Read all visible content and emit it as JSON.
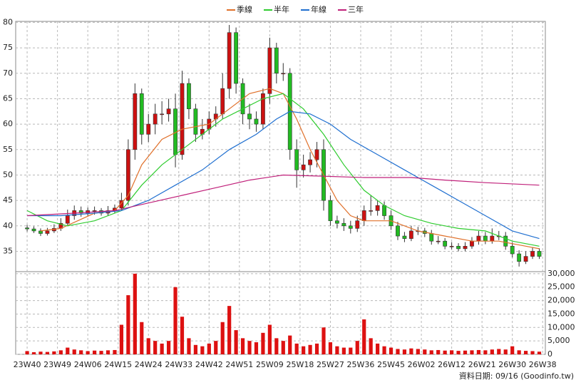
{
  "chart_data": {
    "type": "candlestick",
    "x": [
      0,
      2,
      4,
      6,
      8,
      10,
      12,
      14,
      16,
      18,
      20,
      22,
      24,
      26,
      28,
      30,
      32,
      34,
      36,
      38,
      40,
      42,
      44,
      46,
      48,
      50,
      52,
      54,
      56,
      58,
      60,
      62,
      64,
      66,
      68,
      70,
      72,
      74,
      76,
      78,
      80,
      82,
      84,
      86,
      88,
      90,
      92,
      94,
      96,
      98,
      100,
      102,
      104,
      106,
      108,
      110,
      112,
      114,
      116,
      118,
      120,
      122,
      124,
      126,
      128,
      130,
      132,
      134,
      136,
      138,
      140,
      142,
      144,
      146,
      148,
      150,
      152
    ],
    "open": [
      39.6,
      39.4,
      39,
      38.5,
      39,
      39.5,
      40.5,
      42,
      43,
      42.5,
      43,
      43,
      42.5,
      43,
      43.5,
      45,
      55,
      66,
      58,
      60,
      62,
      62,
      63,
      54,
      68,
      63,
      58,
      59,
      61,
      62,
      67,
      78,
      68,
      62,
      61,
      60,
      66,
      75,
      70,
      70,
      55,
      51,
      52,
      53,
      55,
      45,
      41,
      40.5,
      40,
      39.5,
      41,
      43,
      43,
      44,
      42,
      40,
      38,
      37.5,
      39,
      39,
      38.5,
      37,
      37,
      36,
      36,
      35.5,
      36,
      37,
      38,
      37,
      38,
      38,
      36,
      34.5,
      33,
      34,
      35
    ],
    "high": [
      40.2,
      39.9,
      39.5,
      39.6,
      40.3,
      41.5,
      43.2,
      44,
      43.8,
      43.6,
      43.8,
      43.5,
      43.9,
      44.2,
      46.5,
      57,
      68,
      67,
      62,
      64,
      64.5,
      65,
      66,
      70.5,
      69,
      64,
      61,
      62.5,
      63.5,
      70,
      79.5,
      79,
      69,
      64,
      62.5,
      67,
      77,
      76,
      72,
      71,
      57,
      54,
      54.5,
      56.5,
      57,
      46,
      42,
      41.5,
      41,
      42,
      44,
      46,
      45,
      44.8,
      43,
      40.8,
      38.8,
      40,
      39.8,
      39.6,
      39.2,
      38,
      37.6,
      36.8,
      36.6,
      36.8,
      37.8,
      39,
      38.8,
      39.5,
      39,
      38.8,
      36.8,
      35.2,
      35,
      35.8,
      35.6
    ],
    "low": [
      38.9,
      38.6,
      38,
      38.1,
      38.6,
      39,
      40,
      41.2,
      41.8,
      42,
      42.2,
      42,
      42,
      42.5,
      43,
      44,
      53,
      56,
      56.5,
      58,
      60,
      60.5,
      51.5,
      53,
      61,
      56.5,
      57,
      58,
      59.5,
      61,
      65,
      66,
      60,
      59,
      58.5,
      59,
      64,
      68,
      68.5,
      53,
      47.5,
      49.5,
      50.5,
      51.5,
      43,
      40,
      39.5,
      39,
      38.5,
      38.8,
      40,
      42,
      42,
      41.2,
      39.2,
      37.2,
      36.8,
      37,
      38.2,
      37.8,
      36.3,
      36.4,
      35.4,
      35.4,
      35,
      35,
      35.5,
      36.3,
      36.4,
      36.5,
      37.2,
      35.3,
      33.8,
      32,
      32.5,
      33.5,
      33.5
    ],
    "close": [
      39.4,
      39,
      38.5,
      39,
      39.5,
      40.5,
      42,
      43,
      42.5,
      43,
      43,
      42.5,
      43,
      43.5,
      45,
      55,
      66,
      58,
      60,
      62,
      62,
      63,
      54,
      68,
      63,
      58,
      59,
      61,
      62,
      67,
      78,
      68,
      62,
      61,
      60,
      66,
      75,
      70,
      70,
      55,
      51,
      52,
      53,
      55,
      45,
      41,
      40.5,
      40,
      39.5,
      41,
      43,
      43,
      44,
      42,
      40,
      38,
      37.5,
      39,
      39,
      38.5,
      37,
      37,
      36,
      36,
      35.5,
      36,
      37,
      38,
      37,
      38,
      38,
      36,
      34.5,
      33,
      34,
      35,
      34
    ],
    "volume": [
      1200,
      800,
      1000,
      900,
      1100,
      1500,
      2500,
      1800,
      1500,
      1200,
      1400,
      1300,
      1500,
      1600,
      11000,
      22000,
      30000,
      12000,
      6000,
      5000,
      4000,
      5000,
      25000,
      14000,
      6000,
      3500,
      3000,
      4000,
      5000,
      12000,
      18000,
      9000,
      6000,
      5000,
      4500,
      8000,
      11000,
      6000,
      5000,
      7000,
      4000,
      3000,
      3500,
      4000,
      10000,
      4500,
      3000,
      2500,
      2500,
      5000,
      13000,
      6000,
      4000,
      3000,
      2500,
      2000,
      1800,
      2200,
      2000,
      1800,
      1500,
      1600,
      1400,
      1500,
      1300,
      1400,
      1500,
      1600,
      1500,
      1800,
      2000,
      1800,
      3000,
      1500,
      1300,
      1200,
      1000
    ],
    "up_color": "#cc1111",
    "down_color": "#22bb22",
    "volume_color": "#dd1111",
    "xlim": [
      -3.4,
      153.8
    ],
    "xticks": [
      {
        "value": 0,
        "label": "23W40"
      },
      {
        "value": 9,
        "label": "23W49"
      },
      {
        "value": 18,
        "label": "24W06"
      },
      {
        "value": 27,
        "label": "24W15"
      },
      {
        "value": 36,
        "label": "24W24"
      },
      {
        "value": 45,
        "label": "24W33"
      },
      {
        "value": 54,
        "label": "24W42"
      },
      {
        "value": 63,
        "label": "24W51"
      },
      {
        "value": 72,
        "label": "25W09"
      },
      {
        "value": 81,
        "label": "25W18"
      },
      {
        "value": 90,
        "label": "25W27"
      },
      {
        "value": 99,
        "label": "25W36"
      },
      {
        "value": 108,
        "label": "25W45"
      },
      {
        "value": 117,
        "label": "26W02"
      },
      {
        "value": 126,
        "label": "26W12"
      },
      {
        "value": 135,
        "label": "26W21"
      },
      {
        "value": 144,
        "label": "26W30"
      },
      {
        "value": 153,
        "label": "26W38"
      }
    ],
    "ylim": [
      31,
      80.2
    ],
    "yticks": [
      35,
      40,
      45,
      50,
      55,
      60,
      65,
      70,
      75,
      80
    ],
    "y2lim": [
      0,
      30500
    ],
    "y2ticks": [
      0,
      {
        "value": 5000,
        "label": "5,000"
      },
      {
        "value": 10000,
        "label": "10,000"
      },
      {
        "value": 15000,
        "label": "15,000"
      },
      {
        "value": 20000,
        "label": "20,000"
      },
      {
        "value": 25000,
        "label": "25,000"
      },
      {
        "value": 30000,
        "label": "30,000"
      }
    ],
    "grid": true,
    "legend": "top",
    "series": [
      {
        "name": "季線",
        "color": "#e0702a",
        "x": [
          4,
          10,
          20,
          26,
          30,
          34,
          40,
          46,
          54,
          60,
          66,
          72,
          76,
          80,
          84,
          88,
          92,
          96,
          100,
          108,
          116,
          124,
          132,
          140,
          148,
          152
        ],
        "values": [
          39,
          39.5,
          42.5,
          43,
          46,
          52,
          57,
          59,
          60,
          63,
          66,
          67,
          66,
          61,
          55,
          50,
          45,
          42,
          41,
          41,
          39,
          38,
          37,
          37,
          36,
          35.5
        ]
      },
      {
        "name": "半年",
        "color": "#2ecc2e",
        "x": [
          0,
          6,
          12,
          20,
          28,
          34,
          40,
          46,
          52,
          58,
          64,
          70,
          76,
          82,
          88,
          94,
          100,
          106,
          112,
          120,
          128,
          136,
          144,
          152
        ],
        "values": [
          43,
          41,
          40,
          41,
          43,
          48,
          52,
          55,
          58,
          61,
          63,
          65,
          66,
          63,
          58,
          52,
          47,
          44,
          42,
          40.5,
          39.5,
          39,
          37,
          36
        ]
      },
      {
        "name": "年線",
        "color": "#1f6fd0",
        "x": [
          0,
          10,
          20,
          28,
          36,
          44,
          52,
          60,
          68,
          74,
          78,
          84,
          90,
          96,
          104,
          112,
          120,
          128,
          136,
          144,
          152
        ],
        "values": [
          42,
          42,
          42.5,
          43,
          45,
          48,
          51,
          55,
          58,
          61,
          62.5,
          62,
          60,
          57,
          54,
          51,
          48,
          45,
          42,
          39,
          37.5
        ]
      },
      {
        "name": "三年",
        "color": "#c0207a",
        "x": [
          0,
          14,
          26,
          36,
          46,
          56,
          66,
          76,
          86,
          100,
          114,
          124,
          136,
          152
        ],
        "values": [
          42,
          42.5,
          43,
          44.5,
          46,
          47.5,
          49,
          50,
          49.8,
          49.5,
          49.5,
          49,
          48.5,
          48
        ]
      }
    ],
    "footer": "資料日期: 09/16 (Goodinfo.tw)"
  }
}
